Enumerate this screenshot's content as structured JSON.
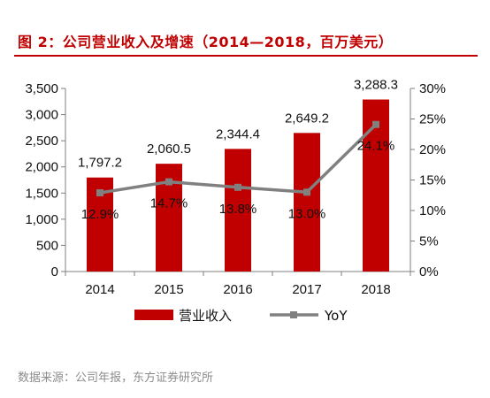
{
  "title": "图 2：公司营业收入及增速（2014—2018，百万美元）",
  "source": "数据来源：公司年报，东方证券研究所",
  "colors": {
    "bar": "#c00000",
    "line": "#808080",
    "title": "#c00000",
    "source": "#8c8c8c"
  },
  "chart_data": {
    "type": "bar",
    "categories": [
      "2014",
      "2015",
      "2016",
      "2017",
      "2018"
    ],
    "series": [
      {
        "name": "营业收入",
        "kind": "bar",
        "axis": "left",
        "values": [
          1797.2,
          2060.5,
          2344.4,
          2649.2,
          3288.3
        ],
        "labels": [
          "1,797.2",
          "2,060.5",
          "2,344.4",
          "2,649.2",
          "3,288.3"
        ]
      },
      {
        "name": "YoY",
        "kind": "line",
        "axis": "right",
        "values": [
          12.9,
          14.7,
          13.8,
          13.0,
          24.1
        ],
        "labels": [
          "12.9%",
          "14.7%",
          "13.8%",
          "13.0%",
          "24.1%"
        ]
      }
    ],
    "y_left": {
      "ylim": [
        0,
        3500
      ],
      "ticks": [
        0,
        500,
        1000,
        1500,
        2000,
        2500,
        3000,
        3500
      ],
      "tick_labels": [
        "0",
        "500",
        "1,000",
        "1,500",
        "2,000",
        "2,500",
        "3,000",
        "3,500"
      ]
    },
    "y_right": {
      "ylim": [
        0,
        30
      ],
      "ticks": [
        0,
        5,
        10,
        15,
        20,
        25,
        30
      ],
      "tick_labels": [
        "0%",
        "5%",
        "10%",
        "15%",
        "20%",
        "25%",
        "30%"
      ]
    },
    "grid": false,
    "legend": "bottom"
  }
}
